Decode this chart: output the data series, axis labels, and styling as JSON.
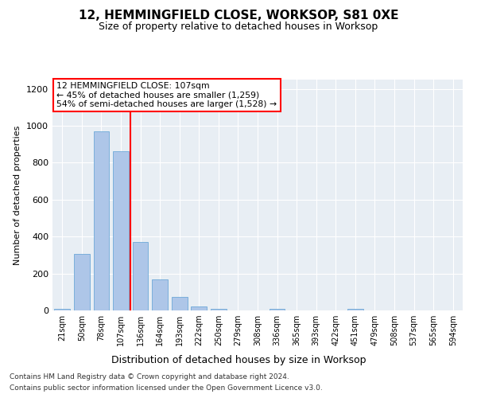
{
  "title1": "12, HEMMINGFIELD CLOSE, WORKSOP, S81 0XE",
  "title2": "Size of property relative to detached houses in Worksop",
  "xlabel": "Distribution of detached houses by size in Worksop",
  "ylabel": "Number of detached properties",
  "categories": [
    "21sqm",
    "50sqm",
    "78sqm",
    "107sqm",
    "136sqm",
    "164sqm",
    "193sqm",
    "222sqm",
    "250sqm",
    "279sqm",
    "308sqm",
    "336sqm",
    "365sqm",
    "393sqm",
    "422sqm",
    "451sqm",
    "479sqm",
    "508sqm",
    "537sqm",
    "565sqm",
    "594sqm"
  ],
  "values": [
    10,
    305,
    970,
    860,
    370,
    170,
    75,
    20,
    10,
    0,
    0,
    10,
    0,
    0,
    0,
    10,
    0,
    0,
    0,
    0,
    0
  ],
  "bar_color": "#aec6e8",
  "bar_edgecolor": "#5a9fd4",
  "red_line_x": 3.5,
  "annotation_text": "12 HEMMINGFIELD CLOSE: 107sqm\n← 45% of detached houses are smaller (1,259)\n54% of semi-detached houses are larger (1,528) →",
  "annotation_box_color": "white",
  "annotation_box_edgecolor": "red",
  "ylim": [
    0,
    1250
  ],
  "yticks": [
    0,
    200,
    400,
    600,
    800,
    1000,
    1200
  ],
  "background_color": "#e8eef4",
  "grid_color": "white",
  "footer1": "Contains HM Land Registry data © Crown copyright and database right 2024.",
  "footer2": "Contains public sector information licensed under the Open Government Licence v3.0."
}
